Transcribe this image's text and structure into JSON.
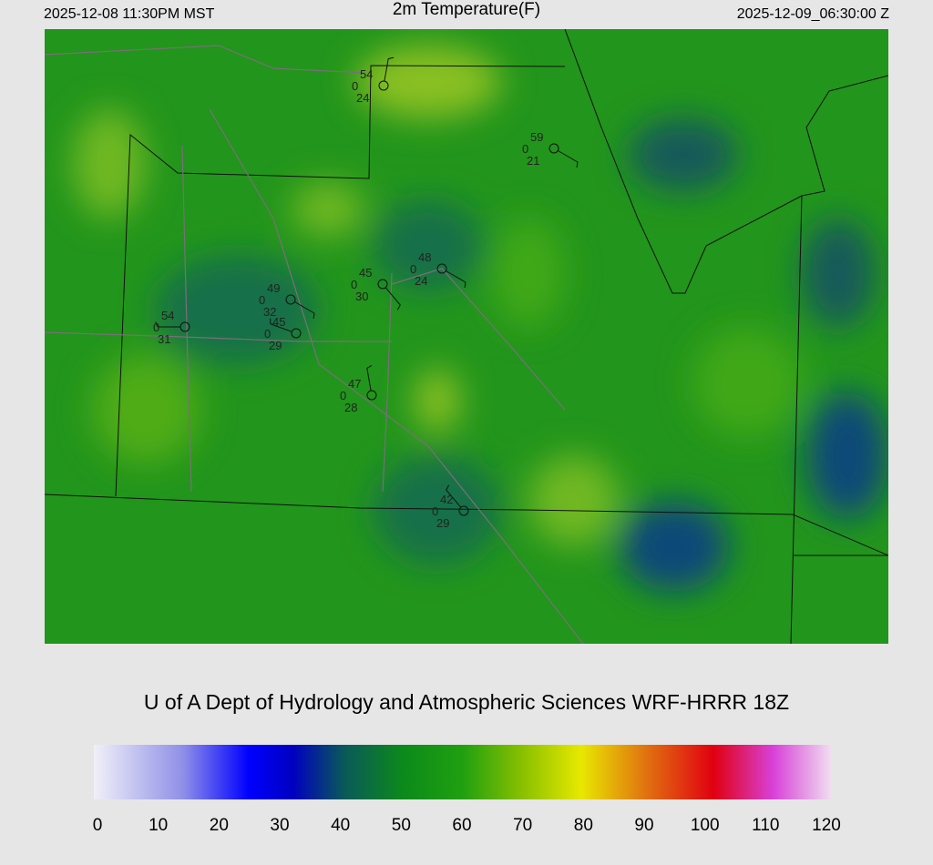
{
  "header": {
    "local_time": "2025-12-08 11:30PM MST",
    "title": "2m Temperature(F)",
    "valid_time": "2025-12-09_06:30:00 Z"
  },
  "stations": [
    {
      "temperature": "54",
      "pressure": "0",
      "dewpoint": "24"
    },
    {
      "temperature": "59",
      "pressure": "0",
      "dewpoint": "21"
    },
    {
      "temperature": "48",
      "pressure": "0",
      "dewpoint": "24"
    },
    {
      "temperature": "45",
      "pressure": "0",
      "dewpoint": "30"
    },
    {
      "temperature": "49",
      "pressure": "0",
      "dewpoint": "32"
    },
    {
      "temperature": "45",
      "pressure": "0",
      "dewpoint": "29"
    },
    {
      "temperature": "54",
      "pressure": "0",
      "dewpoint": "31"
    },
    {
      "temperature": "47",
      "pressure": "0",
      "dewpoint": "28"
    },
    {
      "temperature": "42",
      "pressure": "0",
      "dewpoint": "29"
    }
  ],
  "footer": {
    "credit": "U of A Dept of Hydrology and Atmospheric Sciences WRF-HRRR 18Z"
  },
  "colorbar": {
    "range": [
      0,
      120
    ],
    "ticks": [
      0,
      10,
      20,
      30,
      40,
      50,
      60,
      70,
      80,
      90,
      100,
      110,
      120
    ]
  }
}
